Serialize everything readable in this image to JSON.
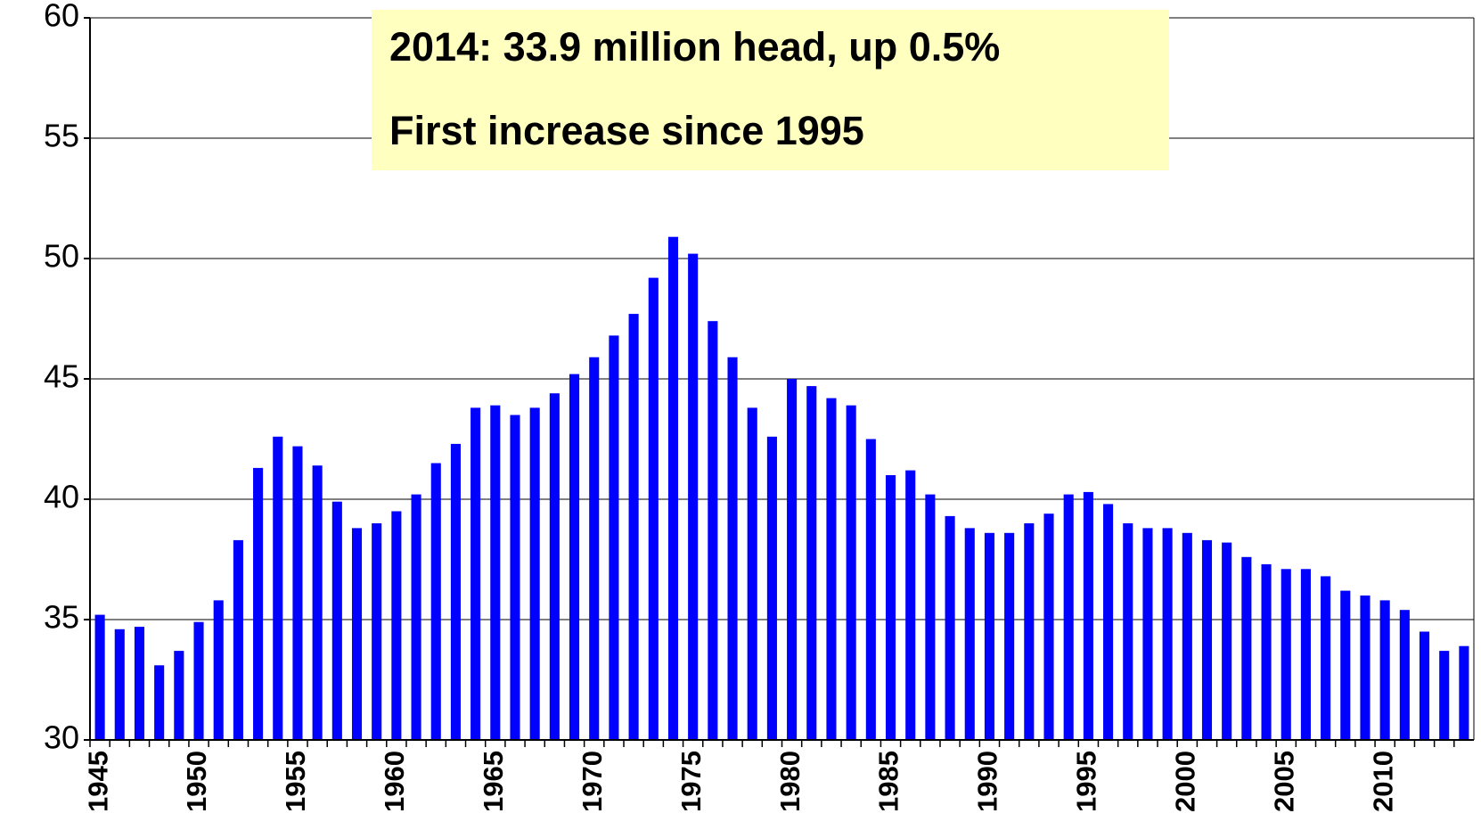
{
  "chart_data": {
    "type": "bar",
    "annotations": [
      "2014:  33.9 million head, up 0.5%",
      "First increase since 1995"
    ],
    "categories": [
      "1945",
      null,
      null,
      null,
      null,
      "1950",
      null,
      null,
      null,
      null,
      "1955",
      null,
      null,
      null,
      null,
      "1960",
      null,
      null,
      null,
      null,
      "1965",
      null,
      null,
      null,
      null,
      "1970",
      null,
      null,
      null,
      null,
      "1975",
      null,
      null,
      null,
      null,
      "1980",
      null,
      null,
      null,
      null,
      "1985",
      null,
      null,
      null,
      null,
      "1990",
      null,
      null,
      null,
      null,
      "1995",
      null,
      null,
      null,
      null,
      "2000",
      null,
      null,
      null,
      null,
      "2005",
      null,
      null,
      null,
      null,
      "2010",
      null,
      null,
      null,
      null
    ],
    "values": [
      35.2,
      34.6,
      34.7,
      33.1,
      33.7,
      34.9,
      35.8,
      38.3,
      41.3,
      42.6,
      42.2,
      41.4,
      39.9,
      38.8,
      39.0,
      39.5,
      40.2,
      41.5,
      42.3,
      43.8,
      43.9,
      43.5,
      43.8,
      44.4,
      45.2,
      45.9,
      46.8,
      47.7,
      49.2,
      50.9,
      50.2,
      47.4,
      45.9,
      43.8,
      42.6,
      45.0,
      44.7,
      44.2,
      43.9,
      42.5,
      41.0,
      41.2,
      40.2,
      39.3,
      38.8,
      38.6,
      38.6,
      39.0,
      39.4,
      40.2,
      40.3,
      39.8,
      39.0,
      38.8,
      38.8,
      38.6,
      38.3,
      38.2,
      37.6,
      37.3,
      37.1,
      37.1,
      36.8,
      36.2,
      36.0,
      35.8,
      35.4,
      34.5,
      33.7,
      33.9
    ],
    "color": "#0000ff",
    "ylim": [
      30,
      60
    ],
    "yticks": [
      30,
      35,
      40,
      45,
      50,
      55,
      60
    ],
    "grid": true
  }
}
